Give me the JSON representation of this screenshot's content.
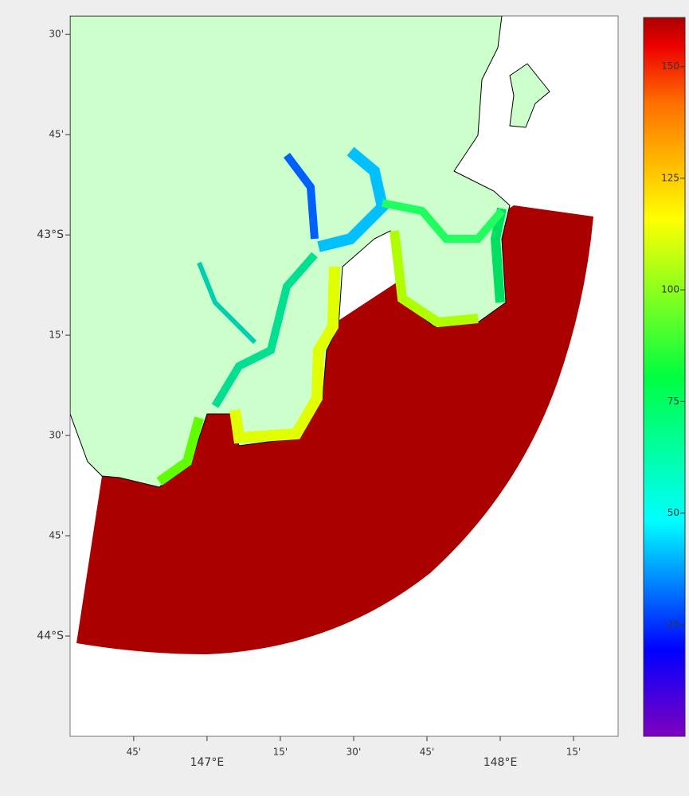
{
  "map": {
    "lat_range": [
      -44.25,
      -42.454
    ],
    "lon_range": [
      146.533,
      148.402
    ],
    "lat_ticks": [
      {
        "value": -42.5,
        "label": "30'"
      },
      {
        "value": -42.75,
        "label": "45'"
      },
      {
        "value": -43,
        "label": "43°S"
      },
      {
        "value": -43.25,
        "label": "15'"
      },
      {
        "value": -43.5,
        "label": "30'"
      },
      {
        "value": -43.75,
        "label": "45'"
      },
      {
        "value": -44,
        "label": "44°S"
      }
    ],
    "lon_ticks": [
      {
        "value": 146.75,
        "label": "45'"
      },
      {
        "value": 147,
        "label": "147°E"
      },
      {
        "value": 147.25,
        "label": "15'"
      },
      {
        "value": 147.5,
        "label": "30'"
      },
      {
        "value": 147.75,
        "label": "45'"
      },
      {
        "value": 148,
        "label": "148°E"
      },
      {
        "value": 148.25,
        "label": "15'"
      }
    ]
  },
  "colorbar": {
    "range": [
      0,
      161
    ],
    "ticks": [
      25,
      50,
      75,
      100,
      125,
      150
    ]
  }
}
